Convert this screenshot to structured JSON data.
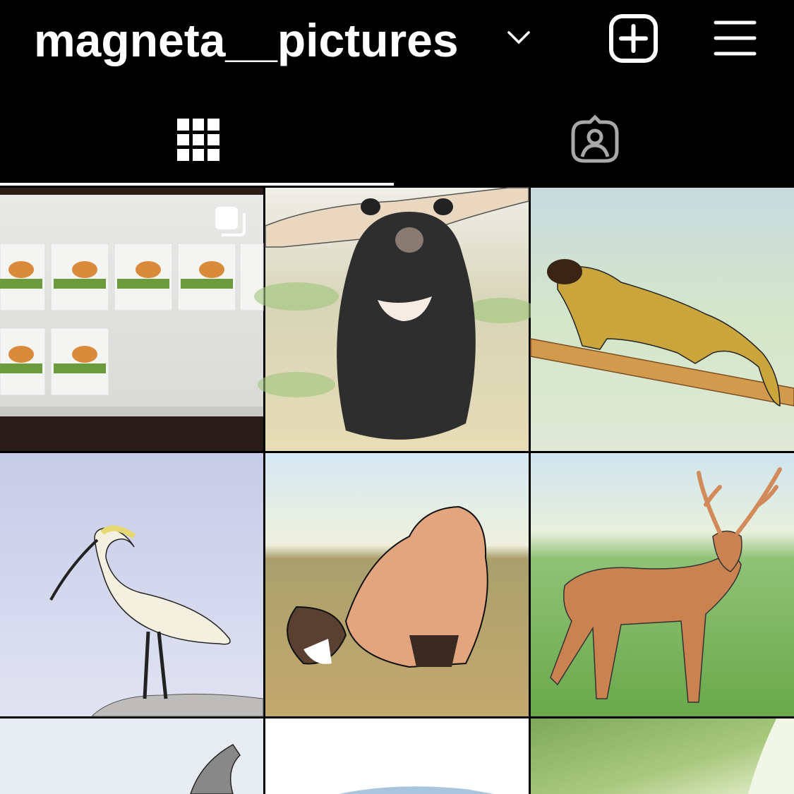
{
  "header": {
    "username": "magneta__pictures"
  }
}
